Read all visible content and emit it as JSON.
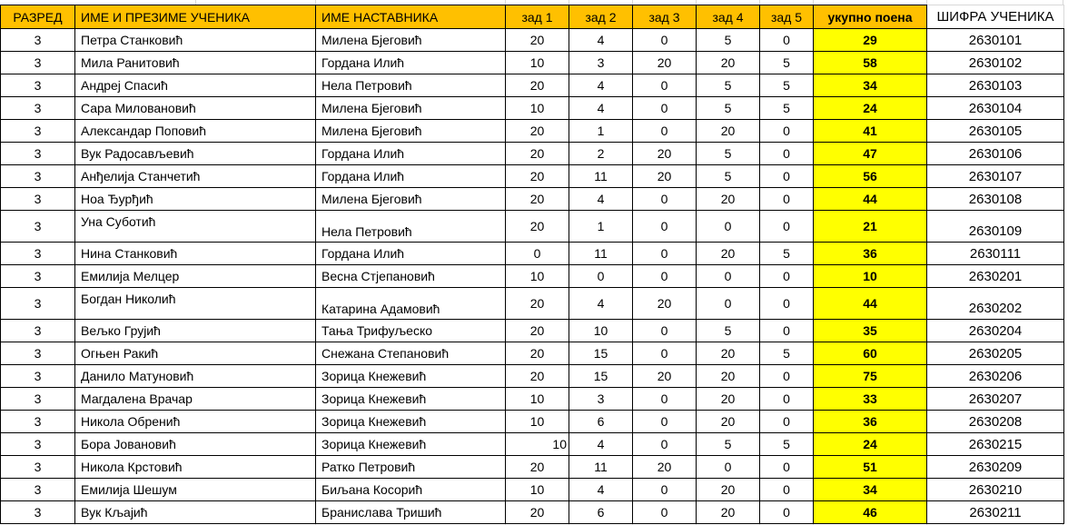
{
  "colors": {
    "header_bg": "#FFC000",
    "total_bg": "#FFFF00",
    "border": "#000000",
    "gridline": "#D8D8D8",
    "text": "#000000"
  },
  "table": {
    "headers": {
      "razred": "РАЗРЕД",
      "student": "ИМЕ И ПРЕЗИМЕ УЧЕНИКА",
      "teacher": "ИМЕ НАСТАВНИКА",
      "zad1": "зад 1",
      "zad2": "зад 2",
      "zad3": "зад 3",
      "zad4": "зад 4",
      "zad5": "зад 5",
      "total": "укупно поена",
      "code": "ШИФРА УЧЕНИКА"
    },
    "rows": [
      {
        "razred": "3",
        "student": "Петра Станковић",
        "teacher": "Милена Бјеговић",
        "z1": "20",
        "z2": "4",
        "z3": "0",
        "z4": "5",
        "z5": "0",
        "total": "29",
        "code": "2630101"
      },
      {
        "razred": "3",
        "student": "Мила Ранитовић",
        "teacher": "Гордана Илић",
        "z1": "10",
        "z2": "3",
        "z3": "20",
        "z4": "20",
        "z5": "5",
        "total": "58",
        "code": "2630102"
      },
      {
        "razred": "3",
        "student": "Андреј Спасић",
        "teacher": "Нела Петровић",
        "z1": "20",
        "z2": "4",
        "z3": "0",
        "z4": "5",
        "z5": "5",
        "total": "34",
        "code": "2630103"
      },
      {
        "razred": "3",
        "student": "Сара Миловановић",
        "teacher": "Милена Бјеговић",
        "z1": "10",
        "z2": "4",
        "z3": "0",
        "z4": "5",
        "z5": "5",
        "total": "24",
        "code": "2630104"
      },
      {
        "razred": "3",
        "student": "Александар Поповић",
        "teacher": "Милена Бјеговић",
        "z1": "20",
        "z2": "1",
        "z3": "0",
        "z4": "20",
        "z5": "0",
        "total": "41",
        "code": "2630105"
      },
      {
        "razred": "3",
        "student": "Вук Радосављевић",
        "teacher": "Гордана Илић",
        "z1": "20",
        "z2": "2",
        "z3": "20",
        "z4": "5",
        "z5": "0",
        "total": "47",
        "code": "2630106"
      },
      {
        "razred": "3",
        "student": "Анђелија Станчетић",
        "teacher": "Гордана Илић",
        "z1": "20",
        "z2": "11",
        "z3": "20",
        "z4": "5",
        "z5": "0",
        "total": "56",
        "code": "2630107"
      },
      {
        "razred": "3",
        "student": "Ноа Ђурђић",
        "teacher": "Милена Бјеговић",
        "z1": "20",
        "z2": "4",
        "z3": "0",
        "z4": "20",
        "z5": "0",
        "total": "44",
        "code": "2630108"
      },
      {
        "razred": "3",
        "student": "Уна Суботић",
        "teacher": "Нела Петровић",
        "z1": "20",
        "z2": "1",
        "z3": "0",
        "z4": "0",
        "z5": "0",
        "total": "21",
        "code": "2630109",
        "tall": true
      },
      {
        "razred": "3",
        "student": "Нина Станковић",
        "teacher": "Гордана Илић",
        "z1": "0",
        "z2": "11",
        "z3": "0",
        "z4": "20",
        "z5": "5",
        "total": "36",
        "code": "2630111"
      },
      {
        "razred": "3",
        "student": "Емилија Мелцер",
        "teacher": "Весна Стјепановић",
        "z1": "10",
        "z2": "0",
        "z3": "0",
        "z4": "0",
        "z5": "0",
        "total": "10",
        "code": "2630201"
      },
      {
        "razred": "3",
        "student": "Богдан Николић",
        "teacher": "Катарина Адамовић",
        "z1": "20",
        "z2": "4",
        "z3": "20",
        "z4": "0",
        "z5": "0",
        "total": "44",
        "code": "2630202",
        "tall": true
      },
      {
        "razred": "3",
        "student": "Вељко Грујић",
        "teacher": "Тања Трифуљеско",
        "z1": "20",
        "z2": "10",
        "z3": "0",
        "z4": "5",
        "z5": "0",
        "total": "35",
        "code": "2630204"
      },
      {
        "razred": "3",
        "student": "Огњен Ракић",
        "teacher": "Снежана Степановић",
        "z1": "20",
        "z2": "15",
        "z3": "0",
        "z4": "20",
        "z5": "5",
        "total": "60",
        "code": "2630205"
      },
      {
        "razred": "3",
        "student": "Данило Матуновић",
        "teacher": "Зорица Кнежевић",
        "z1": "20",
        "z2": "15",
        "z3": "20",
        "z4": "20",
        "z5": "0",
        "total": "75",
        "code": "2630206"
      },
      {
        "razred": "3",
        "student": "Магдалена Врачар",
        "teacher": "Зорица Кнежевић",
        "z1": "10",
        "z2": "3",
        "z3": "0",
        "z4": "20",
        "z5": "0",
        "total": "33",
        "code": "2630207"
      },
      {
        "razred": "3",
        "student": "Никола Обренић",
        "teacher": "Зорица Кнежевић",
        "z1": "10",
        "z2": "6",
        "z3": "0",
        "z4": "20",
        "z5": "0",
        "total": "36",
        "code": "2630208"
      },
      {
        "razred": "3",
        "student": "Бора Јовановић",
        "teacher": "Зорица Кнежевић",
        "z1": "10",
        "z2": "4",
        "z3": "0",
        "z4": "5",
        "z5": "5",
        "total": "24",
        "code": "2630215",
        "z1_align": "right"
      },
      {
        "razred": "3",
        "student": "Никола Крстовић",
        "teacher": "Ратко Петровић",
        "z1": "20",
        "z2": "11",
        "z3": "20",
        "z4": "0",
        "z5": "0",
        "total": "51",
        "code": "2630209"
      },
      {
        "razred": "3",
        "student": "Емилија Шешум",
        "teacher": "Биљана Косорић",
        "z1": "10",
        "z2": "4",
        "z3": "0",
        "z4": "20",
        "z5": "0",
        "total": "34",
        "code": "2630210"
      },
      {
        "razred": "3",
        "student": "Вук Кљајић",
        "teacher": "Бранислава Тришић",
        "z1": "20",
        "z2": "6",
        "z3": "0",
        "z4": "20",
        "z5": "0",
        "total": "46",
        "code": "2630211"
      }
    ]
  }
}
